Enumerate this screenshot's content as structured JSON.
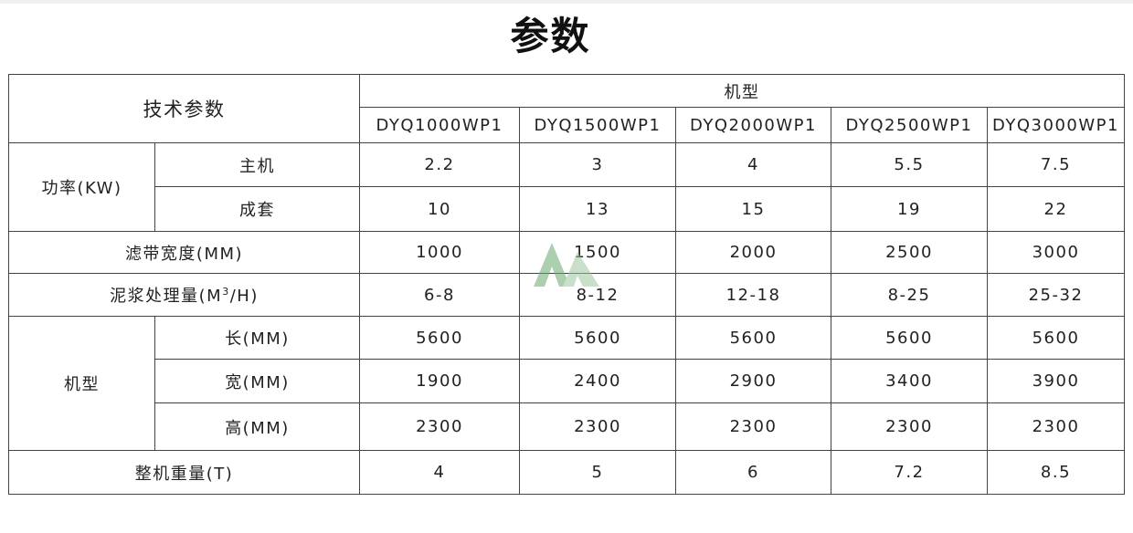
{
  "title": "参数",
  "header": {
    "param_label": "技术参数",
    "model_group": "机型",
    "models": [
      "DYQ1000WP1",
      "DYQ1500WP1",
      "DYQ2000WP1",
      "DYQ2500WP1",
      "DYQ3000WP1"
    ]
  },
  "power": {
    "label": "功率(KW)",
    "rows": [
      {
        "label": "主机",
        "values": [
          "2.2",
          "3",
          "4",
          "5.5",
          "7.5"
        ]
      },
      {
        "label": "成套",
        "values": [
          "10",
          "13",
          "15",
          "19",
          "22"
        ]
      }
    ]
  },
  "belt_width": {
    "label": "滤带宽度(MM)",
    "values": [
      "1000",
      "1500",
      "2000",
      "2500",
      "3000"
    ]
  },
  "capacity": {
    "label": "泥浆处理量(M",
    "sup": "3",
    "label_end": "/H)",
    "values": [
      "6-8",
      "8-12",
      "12-18",
      "8-25",
      "25-32"
    ]
  },
  "dimensions": {
    "label": "机型",
    "rows": [
      {
        "label": "长(MM)",
        "values": [
          "5600",
          "5600",
          "5600",
          "5600",
          "5600"
        ]
      },
      {
        "label": "宽(MM)",
        "values": [
          "1900",
          "2400",
          "2900",
          "3400",
          "3900"
        ]
      },
      {
        "label": "高(MM)",
        "values": [
          "2300",
          "2300",
          "2300",
          "2300",
          "2300"
        ]
      }
    ]
  },
  "weight": {
    "label": "整机重量(T)",
    "values": [
      "4",
      "5",
      "6",
      "7.2",
      "8.5"
    ]
  },
  "watermark_color": "#6aa86f"
}
